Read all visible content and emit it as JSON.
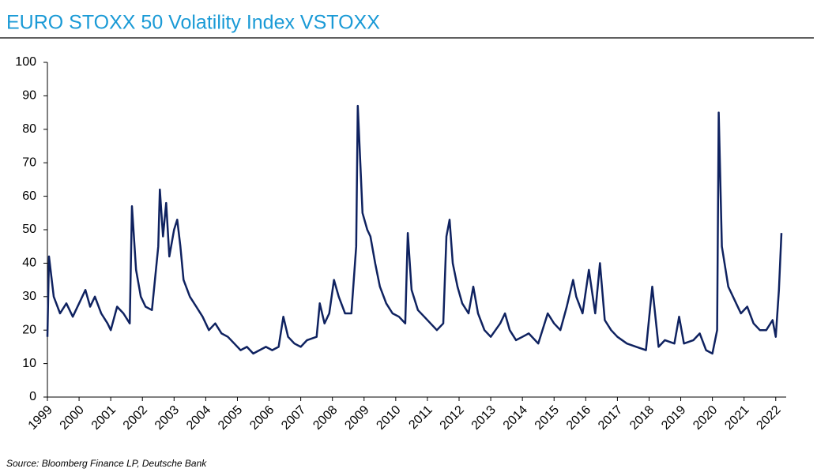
{
  "chart_data": {
    "type": "line",
    "title": "EURO STOXX 50 Volatility Index VSTOXX",
    "source": "Source: Bloomberg Finance LP, Deutsche Bank",
    "color": "#0f2260",
    "x": [
      1999.0,
      1999.05,
      1999.2,
      1999.4,
      1999.6,
      1999.8,
      2000.0,
      2000.2,
      2000.35,
      2000.5,
      2000.7,
      2000.9,
      2001.0,
      2001.2,
      2001.4,
      2001.6,
      2001.67,
      2001.8,
      2001.95,
      2002.1,
      2002.3,
      2002.5,
      2002.55,
      2002.65,
      2002.75,
      2002.85,
      2003.0,
      2003.1,
      2003.2,
      2003.3,
      2003.5,
      2003.7,
      2003.9,
      2004.1,
      2004.3,
      2004.5,
      2004.7,
      2004.9,
      2005.1,
      2005.3,
      2005.5,
      2005.7,
      2005.9,
      2006.1,
      2006.3,
      2006.45,
      2006.6,
      2006.8,
      2007.0,
      2007.2,
      2007.5,
      2007.6,
      2007.75,
      2007.9,
      2008.05,
      2008.2,
      2008.4,
      2008.6,
      2008.75,
      2008.8,
      2008.88,
      2008.95,
      2009.1,
      2009.2,
      2009.35,
      2009.5,
      2009.7,
      2009.9,
      2010.1,
      2010.3,
      2010.38,
      2010.5,
      2010.7,
      2010.9,
      2011.1,
      2011.3,
      2011.5,
      2011.6,
      2011.7,
      2011.8,
      2011.95,
      2012.1,
      2012.3,
      2012.45,
      2012.6,
      2012.8,
      2013.0,
      2013.3,
      2013.45,
      2013.6,
      2013.8,
      2014.0,
      2014.2,
      2014.5,
      2014.8,
      2015.0,
      2015.2,
      2015.4,
      2015.6,
      2015.7,
      2015.9,
      2016.1,
      2016.3,
      2016.45,
      2016.6,
      2016.8,
      2017.0,
      2017.3,
      2017.6,
      2017.9,
      2018.1,
      2018.3,
      2018.5,
      2018.8,
      2018.95,
      2019.1,
      2019.4,
      2019.6,
      2019.8,
      2020.0,
      2020.15,
      2020.2,
      2020.3,
      2020.5,
      2020.75,
      2020.9,
      2021.1,
      2021.3,
      2021.5,
      2021.7,
      2021.9,
      2022.0,
      2022.1,
      2022.18
    ],
    "values": [
      18,
      42,
      30,
      25,
      28,
      24,
      28,
      32,
      27,
      30,
      25,
      22,
      20,
      27,
      25,
      22,
      57,
      38,
      30,
      27,
      26,
      45,
      62,
      48,
      58,
      42,
      50,
      53,
      45,
      35,
      30,
      27,
      24,
      20,
      22,
      19,
      18,
      16,
      14,
      15,
      13,
      14,
      15,
      14,
      15,
      24,
      18,
      16,
      15,
      17,
      18,
      28,
      22,
      25,
      35,
      30,
      25,
      25,
      45,
      87,
      70,
      55,
      50,
      48,
      40,
      33,
      28,
      25,
      24,
      22,
      49,
      32,
      26,
      24,
      22,
      20,
      22,
      48,
      53,
      40,
      33,
      28,
      25,
      33,
      25,
      20,
      18,
      22,
      25,
      20,
      17,
      18,
      19,
      16,
      25,
      22,
      20,
      27,
      35,
      30,
      25,
      38,
      25,
      40,
      23,
      20,
      18,
      16,
      15,
      14,
      33,
      15,
      17,
      16,
      24,
      16,
      17,
      19,
      14,
      13,
      20,
      85,
      45,
      33,
      28,
      25,
      27,
      22,
      20,
      20,
      23,
      18,
      32,
      49
    ],
    "xlim": [
      1999,
      2022.33
    ],
    "ylim": [
      0,
      100
    ],
    "xticks": [
      1999,
      2000,
      2001,
      2002,
      2003,
      2004,
      2005,
      2006,
      2007,
      2008,
      2009,
      2010,
      2011,
      2012,
      2013,
      2014,
      2015,
      2016,
      2017,
      2018,
      2019,
      2020,
      2021,
      2022
    ],
    "yticks": [
      0,
      10,
      20,
      30,
      40,
      50,
      60,
      70,
      80,
      90,
      100
    ]
  }
}
